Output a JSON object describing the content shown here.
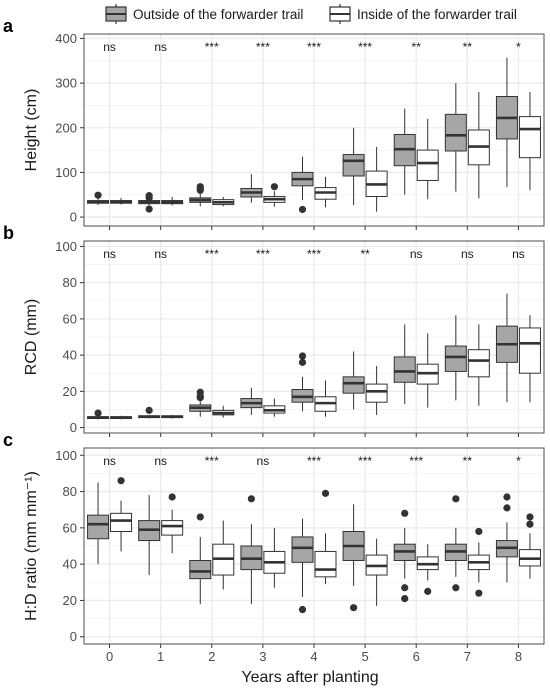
{
  "legend": {
    "position": "top",
    "items": [
      {
        "label": "Outside of the forwarder trail",
        "fill": "#a6a6a6"
      },
      {
        "label": "Inside of the forwarder trail",
        "fill": "#ffffff"
      }
    ]
  },
  "xlabel": "Years after planting",
  "colors": {
    "outside": "#a6a6a6",
    "inside": "#ffffff",
    "grid": "#ebebeb",
    "panel_border": "#4d4d4d"
  },
  "chart_data": [
    {
      "type": "boxplot",
      "panel_label": "a",
      "ylabel": "Height (cm)",
      "ylim": [
        -20,
        410
      ],
      "yticks": [
        0,
        100,
        200,
        300,
        400
      ],
      "grid": true,
      "categories": [
        "0",
        "1",
        "2",
        "3",
        "4",
        "5",
        "6",
        "7",
        "8"
      ],
      "significance": [
        "ns",
        "ns",
        "***",
        "***",
        "***",
        "***",
        "**",
        "**",
        "*"
      ],
      "series": [
        {
          "name": "Outside of the forwarder trail",
          "boxes": [
            {
              "min": 27,
              "q1": 31,
              "median": 34,
              "q3": 37,
              "max": 42,
              "outliers": [
                49
              ]
            },
            {
              "min": 27,
              "q1": 30,
              "median": 34,
              "q3": 37,
              "max": 42,
              "outliers": [
                48,
                43,
                18
              ]
            },
            {
              "min": 24,
              "q1": 33,
              "median": 38,
              "q3": 43,
              "max": 55,
              "outliers": [
                68,
                64,
                60
              ]
            },
            {
              "min": 32,
              "q1": 45,
              "median": 55,
              "q3": 64,
              "max": 96,
              "outliers": []
            },
            {
              "min": 38,
              "q1": 70,
              "median": 85,
              "q3": 100,
              "max": 135,
              "outliers": [
                17
              ]
            },
            {
              "min": 27,
              "q1": 92,
              "median": 126,
              "q3": 140,
              "max": 200,
              "outliers": []
            },
            {
              "min": 50,
              "q1": 115,
              "median": 152,
              "q3": 185,
              "max": 243,
              "outliers": []
            },
            {
              "min": 57,
              "q1": 148,
              "median": 183,
              "q3": 230,
              "max": 300,
              "outliers": []
            },
            {
              "min": 67,
              "q1": 175,
              "median": 222,
              "q3": 270,
              "max": 357,
              "outliers": []
            }
          ]
        },
        {
          "name": "Inside of the forwarder trail",
          "boxes": [
            {
              "min": 28,
              "q1": 31,
              "median": 34,
              "q3": 37,
              "max": 43,
              "outliers": []
            },
            {
              "min": 26,
              "q1": 30,
              "median": 33,
              "q3": 37,
              "max": 45,
              "outliers": []
            },
            {
              "min": 24,
              "q1": 28,
              "median": 33,
              "q3": 39,
              "max": 45,
              "outliers": []
            },
            {
              "min": 23,
              "q1": 33,
              "median": 40,
              "q3": 46,
              "max": 58,
              "outliers": [
                68
              ]
            },
            {
              "min": 22,
              "q1": 40,
              "median": 55,
              "q3": 66,
              "max": 90,
              "outliers": []
            },
            {
              "min": 12,
              "q1": 46,
              "median": 73,
              "q3": 103,
              "max": 157,
              "outliers": []
            },
            {
              "min": 40,
              "q1": 82,
              "median": 121,
              "q3": 150,
              "max": 220,
              "outliers": []
            },
            {
              "min": 42,
              "q1": 117,
              "median": 158,
              "q3": 195,
              "max": 280,
              "outliers": []
            },
            {
              "min": 60,
              "q1": 133,
              "median": 197,
              "q3": 225,
              "max": 280,
              "outliers": []
            }
          ]
        }
      ]
    },
    {
      "type": "boxplot",
      "panel_label": "b",
      "ylabel": "RCD (mm)",
      "ylim": [
        -3,
        103
      ],
      "yticks": [
        0,
        20,
        40,
        60,
        80,
        100
      ],
      "grid": true,
      "categories": [
        "0",
        "1",
        "2",
        "3",
        "4",
        "5",
        "6",
        "7",
        "8"
      ],
      "significance": [
        "ns",
        "ns",
        "***",
        "***",
        "***",
        "**",
        "ns",
        "ns",
        "ns"
      ],
      "series": [
        {
          "name": "Outside of the forwarder trail",
          "boxes": [
            {
              "min": 4.5,
              "q1": 5,
              "median": 5.5,
              "q3": 6,
              "max": 6.5,
              "outliers": [
                8
              ]
            },
            {
              "min": 5,
              "q1": 5.5,
              "median": 6,
              "q3": 6.5,
              "max": 7,
              "outliers": [
                9.5
              ]
            },
            {
              "min": 6,
              "q1": 9,
              "median": 11,
              "q3": 12.5,
              "max": 15,
              "outliers": [
                19.5,
                17.5,
                16.5
              ]
            },
            {
              "min": 7,
              "q1": 11,
              "median": 13.5,
              "q3": 16,
              "max": 22,
              "outliers": []
            },
            {
              "min": 9,
              "q1": 14,
              "median": 17,
              "q3": 21,
              "max": 28,
              "outliers": [
                39.5,
                36
              ]
            },
            {
              "min": 10,
              "q1": 19,
              "median": 24.5,
              "q3": 28,
              "max": 42,
              "outliers": []
            },
            {
              "min": 13,
              "q1": 25,
              "median": 31,
              "q3": 39,
              "max": 57,
              "outliers": []
            },
            {
              "min": 15,
              "q1": 31,
              "median": 39,
              "q3": 45,
              "max": 62,
              "outliers": []
            },
            {
              "min": 14,
              "q1": 36,
              "median": 46,
              "q3": 56,
              "max": 74,
              "outliers": []
            }
          ]
        },
        {
          "name": "Inside of the forwarder trail",
          "boxes": [
            {
              "min": 4.5,
              "q1": 5,
              "median": 5.5,
              "q3": 6,
              "max": 6.5,
              "outliers": []
            },
            {
              "min": 5,
              "q1": 5.5,
              "median": 6,
              "q3": 6.5,
              "max": 7,
              "outliers": []
            },
            {
              "min": 5.5,
              "q1": 7,
              "median": 8,
              "q3": 9.5,
              "max": 12,
              "outliers": []
            },
            {
              "min": 6,
              "q1": 8,
              "median": 9.5,
              "q3": 12,
              "max": 16,
              "outliers": []
            },
            {
              "min": 6,
              "q1": 9,
              "median": 13.5,
              "q3": 17,
              "max": 26,
              "outliers": []
            },
            {
              "min": 7,
              "q1": 14,
              "median": 20,
              "q3": 24,
              "max": 34,
              "outliers": []
            },
            {
              "min": 11,
              "q1": 24,
              "median": 30,
              "q3": 35,
              "max": 52,
              "outliers": []
            },
            {
              "min": 12,
              "q1": 28,
              "median": 37,
              "q3": 43,
              "max": 57,
              "outliers": []
            },
            {
              "min": 14,
              "q1": 30,
              "median": 46.5,
              "q3": 55,
              "max": 62,
              "outliers": []
            }
          ]
        }
      ]
    },
    {
      "type": "boxplot",
      "panel_label": "c",
      "ylabel": "H:D ratio (mm mm⁻¹)",
      "ylim": [
        -4,
        104
      ],
      "yticks": [
        0,
        20,
        40,
        60,
        80,
        100
      ],
      "grid": true,
      "categories": [
        "0",
        "1",
        "2",
        "3",
        "4",
        "5",
        "6",
        "7",
        "8"
      ],
      "significance": [
        "ns",
        "ns",
        "***",
        "ns",
        "***",
        "***",
        "***",
        "**",
        "*"
      ],
      "series": [
        {
          "name": "Outside of the forwarder trail",
          "boxes": [
            {
              "min": 40,
              "q1": 54,
              "median": 62,
              "q3": 67,
              "max": 85,
              "outliers": []
            },
            {
              "min": 34,
              "q1": 53,
              "median": 59,
              "q3": 64,
              "max": 78,
              "outliers": []
            },
            {
              "min": 18,
              "q1": 32,
              "median": 36,
              "q3": 42,
              "max": 55,
              "outliers": [
                66
              ]
            },
            {
              "min": 18,
              "q1": 37,
              "median": 43,
              "q3": 50,
              "max": 62,
              "outliers": [
                76
              ]
            },
            {
              "min": 22,
              "q1": 41,
              "median": 49,
              "q3": 55,
              "max": 65,
              "outliers": [
                15
              ]
            },
            {
              "min": 28,
              "q1": 42,
              "median": 50,
              "q3": 58,
              "max": 73,
              "outliers": [
                16
              ]
            },
            {
              "min": 32,
              "q1": 42,
              "median": 47,
              "q3": 51,
              "max": 60,
              "outliers": [
                68,
                27,
                21
              ]
            },
            {
              "min": 33,
              "q1": 42,
              "median": 47,
              "q3": 51,
              "max": 60,
              "outliers": [
                76,
                27
              ]
            },
            {
              "min": 30,
              "q1": 44,
              "median": 49,
              "q3": 53,
              "max": 63,
              "outliers": [
                77,
                71
              ]
            }
          ]
        },
        {
          "name": "Inside of the forwarder trail",
          "boxes": [
            {
              "min": 47,
              "q1": 58,
              "median": 64,
              "q3": 68,
              "max": 75,
              "outliers": [
                86
              ]
            },
            {
              "min": 46,
              "q1": 56,
              "median": 61,
              "q3": 64,
              "max": 70,
              "outliers": [
                77
              ]
            },
            {
              "min": 26,
              "q1": 34,
              "median": 43,
              "q3": 51,
              "max": 64,
              "outliers": []
            },
            {
              "min": 27,
              "q1": 35,
              "median": 41,
              "q3": 47,
              "max": 60,
              "outliers": []
            },
            {
              "min": 29,
              "q1": 33,
              "median": 37,
              "q3": 47,
              "max": 57,
              "outliers": [
                79
              ]
            },
            {
              "min": 17,
              "q1": 34,
              "median": 39,
              "q3": 45,
              "max": 54,
              "outliers": []
            },
            {
              "min": 31,
              "q1": 37,
              "median": 40,
              "q3": 44,
              "max": 51,
              "outliers": [
                25
              ]
            },
            {
              "min": 30,
              "q1": 37,
              "median": 41,
              "q3": 45,
              "max": 52,
              "outliers": [
                58,
                24
              ]
            },
            {
              "min": 32,
              "q1": 39,
              "median": 43,
              "q3": 48,
              "max": 57,
              "outliers": [
                66,
                62
              ]
            }
          ]
        }
      ]
    }
  ]
}
